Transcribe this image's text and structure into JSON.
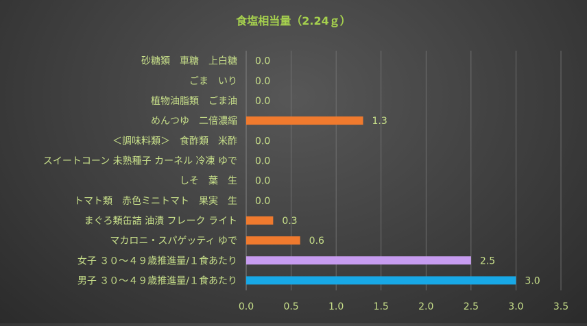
{
  "chart_data": {
    "type": "bar",
    "orientation": "horizontal",
    "title": "食塩相当量（2.24ｇ）",
    "categories": [
      "砂糖類　車糖　上白糖",
      "ごま　いり",
      "植物油脂類　ごま油",
      "めんつゆ　二倍濃縮",
      "＜調味料類＞　食酢類　米酢",
      "スイートコーン 未熟種子 カーネル 冷凍 ゆで",
      "しそ　葉　生",
      "トマト類　赤色ミニトマト　果実　生",
      "まぐろ類缶詰 油漬 フレーク ライト",
      "マカロニ・スパゲッティ ゆで",
      "女子 ３０～４９歳推進量/１食あたり",
      "男子 ３０～４９歳推進量/１食あたり"
    ],
    "values": [
      0.0,
      0.0,
      0.0,
      1.3,
      0.0,
      0.0,
      0.0,
      0.0,
      0.3,
      0.6,
      2.5,
      3.0
    ],
    "value_labels": [
      "0.0",
      "0.0",
      "0.0",
      "1.3",
      "0.0",
      "0.0",
      "0.0",
      "0.0",
      "0.3",
      "0.6",
      "2.5",
      "3.0"
    ],
    "bar_colors": [
      "#f07a2e",
      "#f07a2e",
      "#f07a2e",
      "#f07a2e",
      "#f07a2e",
      "#f07a2e",
      "#f07a2e",
      "#f07a2e",
      "#f07a2e",
      "#f07a2e",
      "#c79cf0",
      "#18a8e6"
    ],
    "xlim": [
      0,
      3.5
    ],
    "xticks": [
      "0.0",
      "0.5",
      "1.0",
      "1.5",
      "2.0",
      "2.5",
      "3.0",
      "3.5"
    ],
    "xlabel": "",
    "ylabel": "",
    "grid": "vertical",
    "legend": "none",
    "colors": {
      "text": "#c8e08a",
      "title": "#a6d14e",
      "grid": "#7a7a7a"
    }
  }
}
